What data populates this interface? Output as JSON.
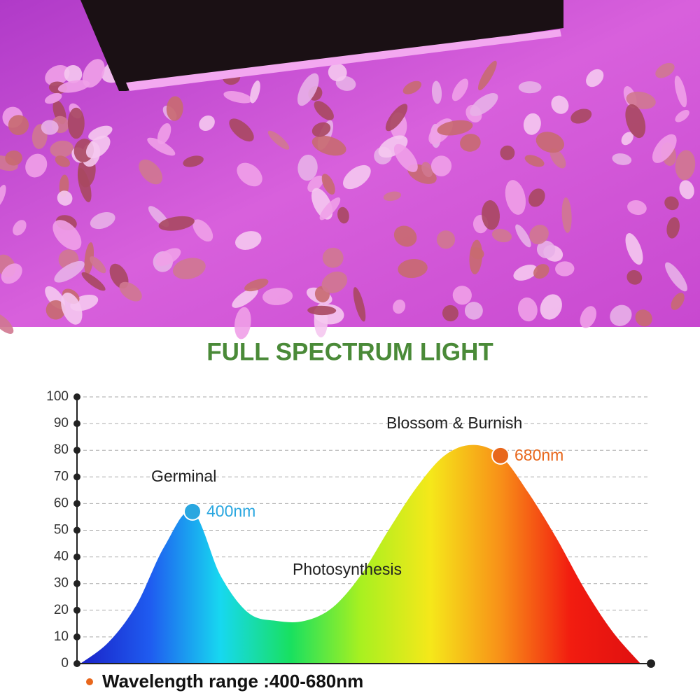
{
  "chart_data": {
    "type": "area",
    "title": "FULL SPECTRUM LIGHT",
    "categories": [
      null,
      null,
      null,
      null,
      null,
      null,
      null,
      null,
      null,
      null,
      null,
      null,
      null,
      null,
      null,
      null,
      null,
      null,
      null,
      null,
      null
    ],
    "values": [
      0,
      8,
      22,
      44,
      57,
      33,
      19,
      16,
      16,
      21,
      33,
      50,
      66,
      78,
      82,
      78,
      64,
      47,
      28,
      12,
      0
    ],
    "point_labels": [
      null,
      null,
      null,
      null,
      "400nm",
      null,
      null,
      null,
      null,
      null,
      null,
      null,
      null,
      null,
      null,
      "680nm",
      null,
      null,
      null,
      null,
      null
    ],
    "point_colors": [
      null,
      null,
      null,
      null,
      "#2aa7e0",
      null,
      null,
      null,
      null,
      null,
      null,
      null,
      null,
      null,
      null,
      "#e8671c",
      null,
      null,
      null,
      null,
      null
    ],
    "gradient": [
      "#1a22c8",
      "#1f5cf0",
      "#17d8f0",
      "#18e060",
      "#a8f020",
      "#f5e81a",
      "#f89018",
      "#f21c10",
      "#e01010"
    ],
    "ylim": [
      0,
      100
    ],
    "yticks": [
      0,
      10,
      20,
      30,
      40,
      50,
      60,
      70,
      80,
      90,
      100
    ],
    "grid": true,
    "annotations": [
      "Germinal",
      "Blossom & Burnish",
      "Photosynthesis"
    ],
    "footnote": "Wavelength range :400-680nm",
    "footnote_color": "#e8671c",
    "title_color": "#4a8a38"
  }
}
